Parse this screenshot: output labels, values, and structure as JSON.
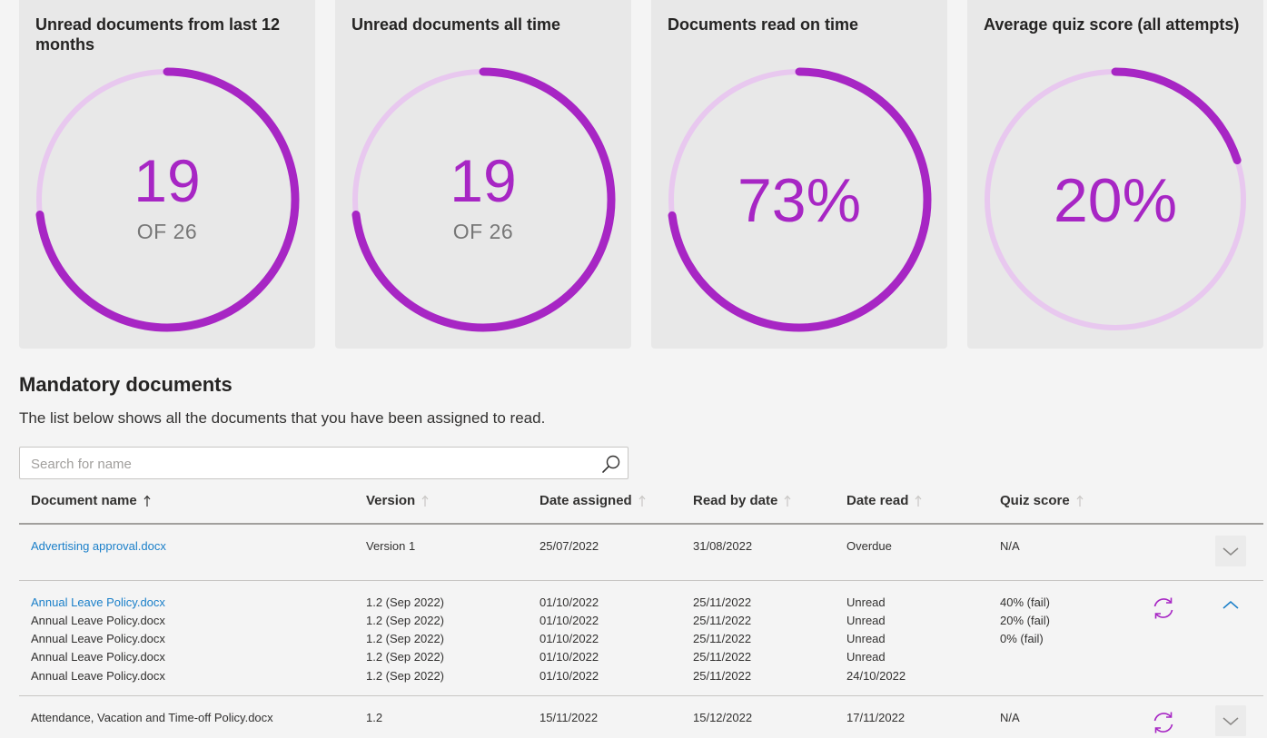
{
  "cards": [
    {
      "title": "Unread documents from last 12 months",
      "value": "19",
      "sub": "OF 26",
      "fraction": 0.731
    },
    {
      "title": "Unread documents all time",
      "value": "19",
      "sub": "OF 26",
      "fraction": 0.731
    },
    {
      "title": "Documents read on time",
      "value": "73%",
      "sub": "",
      "fraction": 0.73
    },
    {
      "title": "Average quiz score (all attempts)",
      "value": "20%",
      "sub": "",
      "fraction": 0.2
    }
  ],
  "section": {
    "title": "Mandatory documents",
    "description": "The list below shows all the documents that you have been assigned to read."
  },
  "search": {
    "placeholder": "Search for name",
    "value": ""
  },
  "columns": {
    "name": "Document name",
    "version": "Version",
    "assigned": "Date assigned",
    "readby": "Read by date",
    "dateread": "Date read",
    "quiz": "Quiz score"
  },
  "rows": [
    {
      "lines": [
        {
          "name": "Advertising approval.docx",
          "version": "Version 1",
          "assigned": "25/07/2022",
          "readby": "31/08/2022",
          "dateread": "Overdue",
          "quiz": "N/A"
        }
      ]
    },
    {
      "lines": [
        {
          "name": "Annual Leave Policy.docx",
          "version": "1.2 (Sep 2022)",
          "assigned": "01/10/2022",
          "readby": "25/11/2022",
          "dateread": "Unread",
          "quiz": "40% (fail)"
        },
        {
          "name": "Annual Leave Policy.docx",
          "version": "1.2 (Sep 2022)",
          "assigned": "01/10/2022",
          "readby": "25/11/2022",
          "dateread": "Unread",
          "quiz": "20% (fail)"
        },
        {
          "name": "Annual Leave Policy.docx",
          "version": "1.2 (Sep 2022)",
          "assigned": "01/10/2022",
          "readby": "25/11/2022",
          "dateread": "Unread",
          "quiz": "0% (fail)"
        },
        {
          "name": "Annual Leave Policy.docx",
          "version": "1.2 (Sep 2022)",
          "assigned": "01/10/2022",
          "readby": "25/11/2022",
          "dateread": "Unread",
          "quiz": ""
        },
        {
          "name": "Annual Leave Policy.docx",
          "version": "1.2 (Sep 2022)",
          "assigned": "01/10/2022",
          "readby": "25/11/2022",
          "dateread": "24/10/2022",
          "quiz": ""
        }
      ]
    },
    {
      "lines": [
        {
          "name": "Attendance, Vacation and Time-off Policy.docx",
          "version": "1.2",
          "assigned": "15/11/2022",
          "readby": "15/12/2022",
          "dateread": "17/11/2022",
          "quiz": "N/A"
        }
      ]
    }
  ],
  "colors": {
    "accent": "#a726c4",
    "track": "#e8c8ef",
    "link": "#1a7fc9"
  }
}
